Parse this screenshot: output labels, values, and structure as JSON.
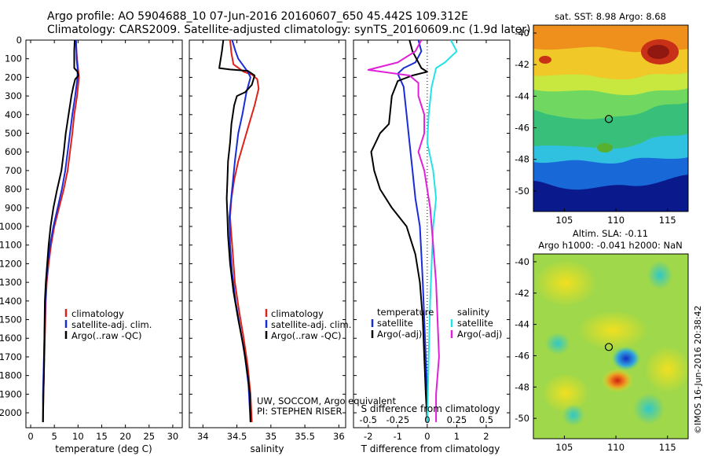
{
  "header": {
    "line1": "Argo profile: AO 5904688_10 07-Jun-2016 20160607_650 45.442S 109.312E",
    "line2": "Climatology: CARS2009. Satellite-adjusted climatology: synTS_20160609.nc (1.9d later)"
  },
  "colors": {
    "climatology": "#e0201a",
    "satellite": "#1a2bd8",
    "argo": "#000000",
    "sal_satellite": "#22e4e8",
    "sal_argo": "#e020d8"
  },
  "depth_ticks": [
    "0",
    "100",
    "200",
    "300",
    "400",
    "500",
    "600",
    "700",
    "800",
    "900",
    "1000",
    "1100",
    "1200",
    "1300",
    "1400",
    "1500",
    "1600",
    "1700",
    "1800",
    "1900",
    "2000"
  ],
  "chart_data": [
    {
      "type": "line",
      "panel": "temperature",
      "xlabel": "temperature (deg C)",
      "ylabel": "",
      "xlim": [
        -1,
        32
      ],
      "ylim": [
        2080,
        0
      ],
      "xticks": [
        "0",
        "5",
        "10",
        "15",
        "20",
        "25",
        "30"
      ],
      "legend": [
        "climatology",
        "satellite-adj. clim.",
        "Argo(..raw -QC)"
      ],
      "series": [
        {
          "name": "climatology",
          "key": "climatology",
          "points": [
            [
              9.5,
              0
            ],
            [
              9.8,
              100
            ],
            [
              10.0,
              150
            ],
            [
              10.2,
              200
            ],
            [
              9.8,
              300
            ],
            [
              9.2,
              400
            ],
            [
              8.8,
              500
            ],
            [
              8.3,
              600
            ],
            [
              7.8,
              700
            ],
            [
              7.0,
              800
            ],
            [
              6.0,
              900
            ],
            [
              5.0,
              1000
            ],
            [
              4.3,
              1100
            ],
            [
              3.8,
              1200
            ],
            [
              3.4,
              1300
            ],
            [
              3.2,
              1400
            ],
            [
              3.0,
              1600
            ],
            [
              2.8,
              1800
            ],
            [
              2.7,
              1900
            ],
            [
              2.6,
              2050
            ]
          ]
        },
        {
          "name": "satellite-adj. clim.",
          "key": "satellite",
          "points": [
            [
              9.6,
              0
            ],
            [
              9.7,
              100
            ],
            [
              9.9,
              150
            ],
            [
              9.9,
              200
            ],
            [
              9.4,
              300
            ],
            [
              8.8,
              400
            ],
            [
              8.3,
              500
            ],
            [
              7.8,
              600
            ],
            [
              7.3,
              700
            ],
            [
              6.6,
              800
            ],
            [
              5.7,
              900
            ],
            [
              4.8,
              1000
            ],
            [
              4.1,
              1100
            ],
            [
              3.6,
              1200
            ],
            [
              3.3,
              1300
            ],
            [
              3.1,
              1400
            ],
            [
              2.9,
              1600
            ],
            [
              2.7,
              1800
            ],
            [
              2.6,
              1900
            ],
            [
              2.6,
              2050
            ]
          ]
        },
        {
          "name": "Argo(..raw -QC)",
          "key": "argo",
          "points": [
            [
              9.3,
              0
            ],
            [
              9.2,
              60
            ],
            [
              9.2,
              150
            ],
            [
              9.9,
              170
            ],
            [
              10.1,
              190
            ],
            [
              9.4,
              210
            ],
            [
              9.0,
              250
            ],
            [
              8.6,
              300
            ],
            [
              8.0,
              400
            ],
            [
              7.4,
              500
            ],
            [
              7.0,
              600
            ],
            [
              6.5,
              700
            ],
            [
              5.6,
              800
            ],
            [
              4.8,
              900
            ],
            [
              4.2,
              1000
            ],
            [
              3.8,
              1100
            ],
            [
              3.5,
              1200
            ],
            [
              3.2,
              1300
            ],
            [
              3.0,
              1400
            ],
            [
              2.9,
              1600
            ],
            [
              2.8,
              1800
            ],
            [
              2.7,
              1900
            ],
            [
              2.6,
              2050
            ]
          ]
        }
      ]
    },
    {
      "type": "line",
      "panel": "salinity",
      "xlabel": "salinity",
      "ylabel": "",
      "xlim": [
        33.8,
        36.1
      ],
      "ylim": [
        2080,
        0
      ],
      "xticks": [
        "34",
        "34.5",
        "35",
        "35.5",
        "36"
      ],
      "legend": [
        "climatology",
        "satellite-adj. clim.",
        "Argo(..raw -QC)"
      ],
      "series": [
        {
          "name": "climatology",
          "key": "climatology",
          "points": [
            [
              34.4,
              0
            ],
            [
              34.42,
              70
            ],
            [
              34.45,
              130
            ],
            [
              34.6,
              170
            ],
            [
              34.72,
              185
            ],
            [
              34.8,
              210
            ],
            [
              34.82,
              260
            ],
            [
              34.76,
              350
            ],
            [
              34.68,
              450
            ],
            [
              34.6,
              550
            ],
            [
              34.52,
              650
            ],
            [
              34.46,
              750
            ],
            [
              34.42,
              850
            ],
            [
              34.4,
              950
            ],
            [
              34.42,
              1050
            ],
            [
              34.44,
              1150
            ],
            [
              34.47,
              1300
            ],
            [
              34.53,
              1450
            ],
            [
              34.6,
              1600
            ],
            [
              34.66,
              1750
            ],
            [
              34.7,
              1900
            ],
            [
              34.72,
              2050
            ]
          ]
        },
        {
          "name": "satellite-adj. clim.",
          "key": "satellite",
          "points": [
            [
              34.43,
              0
            ],
            [
              34.48,
              60
            ],
            [
              34.52,
              100
            ],
            [
              34.6,
              140
            ],
            [
              34.66,
              170
            ],
            [
              34.7,
              200
            ],
            [
              34.64,
              280
            ],
            [
              34.58,
              400
            ],
            [
              34.52,
              500
            ],
            [
              34.47,
              650
            ],
            [
              34.43,
              800
            ],
            [
              34.39,
              950
            ],
            [
              34.4,
              1100
            ],
            [
              34.43,
              1250
            ],
            [
              34.48,
              1400
            ],
            [
              34.55,
              1550
            ],
            [
              34.62,
              1700
            ],
            [
              34.67,
              1850
            ],
            [
              34.7,
              2050
            ]
          ]
        },
        {
          "name": "Argo(..raw -QC)",
          "key": "argo",
          "points": [
            [
              34.3,
              0
            ],
            [
              34.28,
              60
            ],
            [
              34.24,
              150
            ],
            [
              34.4,
              158
            ],
            [
              34.66,
              165
            ],
            [
              34.76,
              190
            ],
            [
              34.72,
              240
            ],
            [
              34.62,
              280
            ],
            [
              34.5,
              300
            ],
            [
              34.46,
              350
            ],
            [
              34.42,
              450
            ],
            [
              34.4,
              550
            ],
            [
              34.37,
              650
            ],
            [
              34.36,
              750
            ],
            [
              34.35,
              850
            ],
            [
              34.36,
              950
            ],
            [
              34.37,
              1050
            ],
            [
              34.4,
              1200
            ],
            [
              34.45,
              1350
            ],
            [
              34.52,
              1500
            ],
            [
              34.6,
              1650
            ],
            [
              34.66,
              1800
            ],
            [
              34.69,
              1900
            ],
            [
              34.7,
              2050
            ]
          ]
        }
      ],
      "annotations": [
        "UW, SOCCOM, Argo equivalent",
        "PI: STEPHEN RISER"
      ]
    },
    {
      "type": "line",
      "panel": "difference",
      "xlabel": "T difference from climatology",
      "xlabel_top": "S difference from climatology",
      "ylabel": "",
      "xlim": [
        -2.5,
        2.8
      ],
      "ylim": [
        2080,
        0
      ],
      "xticks": [
        "-2",
        "-1",
        "0",
        "1",
        "2"
      ],
      "xticks_s": [
        "-0.5",
        "-0.25",
        "0",
        "0.25",
        "0.5"
      ],
      "legend_left_title": "temperature",
      "legend_right_title": "salinity",
      "legend": [
        "satellite",
        "Argo(-adj)",
        "satellite",
        "Argo(-adj)"
      ],
      "series": [
        {
          "name": "temperature satellite",
          "key": "satellite",
          "points": [
            [
              -0.3,
              0
            ],
            [
              -0.2,
              60
            ],
            [
              -0.4,
              120
            ],
            [
              -0.8,
              150
            ],
            [
              -1.0,
              180
            ],
            [
              -0.8,
              250
            ],
            [
              -0.7,
              400
            ],
            [
              -0.6,
              550
            ],
            [
              -0.5,
              700
            ],
            [
              -0.4,
              850
            ],
            [
              -0.25,
              1000
            ],
            [
              -0.2,
              1150
            ],
            [
              -0.15,
              1300
            ],
            [
              -0.1,
              1500
            ],
            [
              -0.05,
              1700
            ],
            [
              0,
              1900
            ],
            [
              0,
              2050
            ]
          ]
        },
        {
          "name": "temperature Argo(-adj)",
          "key": "argo",
          "points": [
            [
              -0.6,
              0
            ],
            [
              -0.5,
              60
            ],
            [
              -0.2,
              150
            ],
            [
              0,
              170
            ],
            [
              -0.5,
              190
            ],
            [
              -1.0,
              220
            ],
            [
              -1.2,
              300
            ],
            [
              -1.3,
              450
            ],
            [
              -1.6,
              500
            ],
            [
              -1.9,
              600
            ],
            [
              -1.8,
              700
            ],
            [
              -1.6,
              800
            ],
            [
              -1.2,
              900
            ],
            [
              -0.7,
              1000
            ],
            [
              -0.4,
              1150
            ],
            [
              -0.25,
              1300
            ],
            [
              -0.15,
              1500
            ],
            [
              -0.1,
              1700
            ],
            [
              -0.05,
              1900
            ],
            [
              0,
              2050
            ]
          ]
        },
        {
          "name": "salinity satellite",
          "key": "sal_satellite",
          "points": [
            [
              0.8,
              0
            ],
            [
              1.0,
              60
            ],
            [
              0.6,
              120
            ],
            [
              0.3,
              150
            ],
            [
              0.15,
              250
            ],
            [
              0.05,
              400
            ],
            [
              0.0,
              550
            ],
            [
              0.2,
              700
            ],
            [
              0.3,
              850
            ],
            [
              0.2,
              1000
            ],
            [
              0.15,
              1200
            ],
            [
              0.1,
              1400
            ],
            [
              0.05,
              1700
            ],
            [
              0.0,
              2050
            ]
          ]
        },
        {
          "name": "salinity Argo(-adj)",
          "key": "sal_argo",
          "points": [
            [
              -0.2,
              0
            ],
            [
              -0.4,
              60
            ],
            [
              -1.0,
              120
            ],
            [
              -2.0,
              160
            ],
            [
              -0.6,
              190
            ],
            [
              -0.3,
              230
            ],
            [
              -0.3,
              300
            ],
            [
              -0.1,
              400
            ],
            [
              -0.1,
              500
            ],
            [
              -0.3,
              600
            ],
            [
              -0.1,
              700
            ],
            [
              0.1,
              900
            ],
            [
              0.2,
              1100
            ],
            [
              0.3,
              1300
            ],
            [
              0.35,
              1500
            ],
            [
              0.4,
              1700
            ],
            [
              0.3,
              1900
            ],
            [
              0.3,
              2050
            ]
          ]
        }
      ]
    },
    {
      "type": "heatmap",
      "panel": "sst_map",
      "title": "sat. SST: 8.98  Argo: 8.68",
      "xticks": [
        "105",
        "110",
        "115"
      ],
      "yticks": [
        "-40",
        "-42",
        "-44",
        "-46",
        "-48",
        "-50"
      ],
      "xlim": [
        102,
        117
      ],
      "ylim": [
        -51.3,
        -39.5
      ],
      "marker": [
        109.312,
        -45.442
      ]
    },
    {
      "type": "heatmap",
      "panel": "sla_map",
      "title": "Altim. SLA: -0.11",
      "subtitle": "Argo h1000: -0.041  h2000: NaN",
      "xticks": [
        "105",
        "110",
        "115"
      ],
      "yticks": [
        "-40",
        "-42",
        "-44",
        "-46",
        "-48",
        "-50"
      ],
      "xlim": [
        102,
        117
      ],
      "ylim": [
        -51.3,
        -39.5
      ],
      "marker": [
        109.312,
        -45.442
      ]
    }
  ],
  "watermark": "©IMOS 16-Jun-2016 20:38:42"
}
